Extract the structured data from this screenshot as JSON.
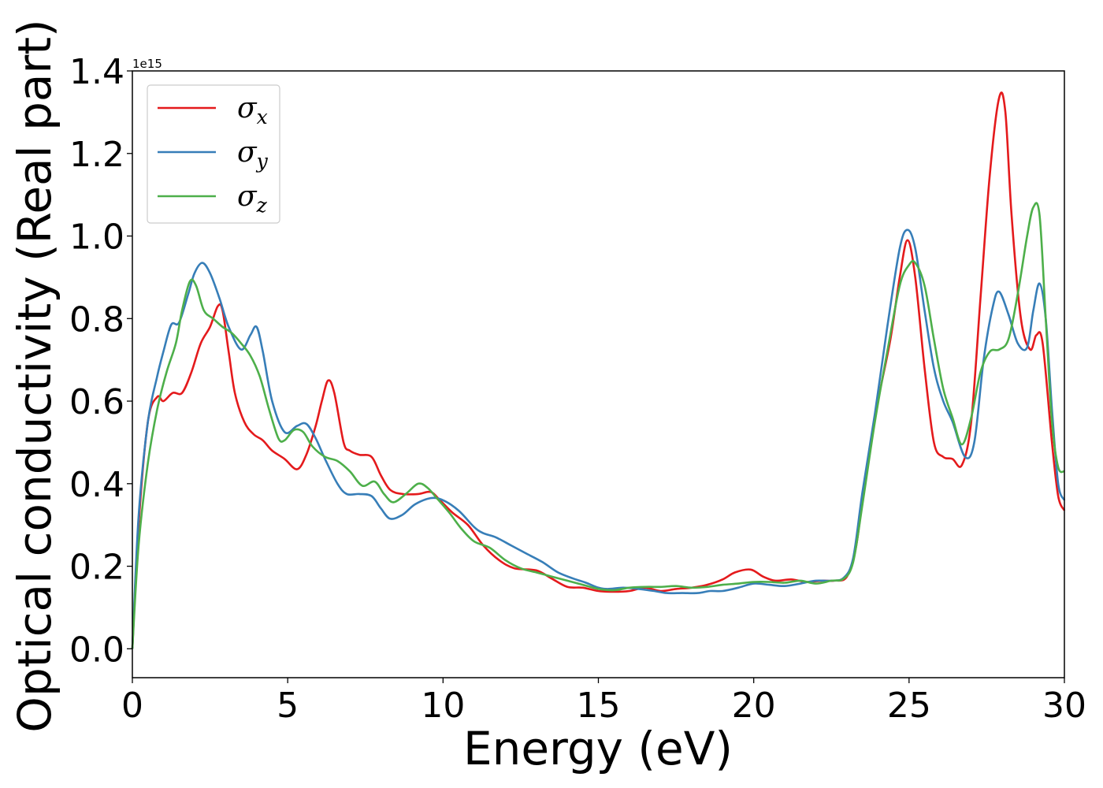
{
  "chart_data": {
    "type": "line",
    "title": "",
    "xlabel": "Energy (eV)",
    "ylabel": "Optical conductivity (Real part)",
    "y_offset_text": "1e15",
    "xlim": [
      0,
      30
    ],
    "ylim": [
      -0.07,
      1.4
    ],
    "x_ticks": [
      0,
      5,
      10,
      15,
      20,
      25,
      30
    ],
    "x_tick_labels": [
      "0",
      "5",
      "10",
      "15",
      "20",
      "25",
      "30"
    ],
    "y_ticks": [
      0.0,
      0.2,
      0.4,
      0.6,
      0.8,
      1.0,
      1.2,
      1.4
    ],
    "y_tick_labels": [
      "0.0",
      "0.2",
      "0.4",
      "0.6",
      "0.8",
      "1.0",
      "1.2",
      "1.4"
    ],
    "grid": false,
    "legend_position": "upper-left",
    "series": [
      {
        "legend_base": "σ",
        "legend_sub": "x",
        "color": "#e41a1c",
        "points": [
          [
            0,
            0
          ],
          [
            0.2,
            0.3
          ],
          [
            0.5,
            0.55
          ],
          [
            0.8,
            0.61
          ],
          [
            1.0,
            0.6
          ],
          [
            1.3,
            0.62
          ],
          [
            1.6,
            0.62
          ],
          [
            1.9,
            0.67
          ],
          [
            2.2,
            0.74
          ],
          [
            2.5,
            0.78
          ],
          [
            2.75,
            0.83
          ],
          [
            2.9,
            0.82
          ],
          [
            3.1,
            0.72
          ],
          [
            3.3,
            0.62
          ],
          [
            3.6,
            0.55
          ],
          [
            3.9,
            0.52
          ],
          [
            4.2,
            0.505
          ],
          [
            4.5,
            0.48
          ],
          [
            4.9,
            0.46
          ],
          [
            5.3,
            0.435
          ],
          [
            5.6,
            0.47
          ],
          [
            5.9,
            0.54
          ],
          [
            6.1,
            0.6
          ],
          [
            6.3,
            0.65
          ],
          [
            6.5,
            0.62
          ],
          [
            6.8,
            0.5
          ],
          [
            7.0,
            0.48
          ],
          [
            7.3,
            0.47
          ],
          [
            7.7,
            0.465
          ],
          [
            8.0,
            0.42
          ],
          [
            8.3,
            0.385
          ],
          [
            8.7,
            0.375
          ],
          [
            9.2,
            0.375
          ],
          [
            9.6,
            0.38
          ],
          [
            9.9,
            0.36
          ],
          [
            10.3,
            0.33
          ],
          [
            10.8,
            0.3
          ],
          [
            11.3,
            0.25
          ],
          [
            11.8,
            0.215
          ],
          [
            12.3,
            0.195
          ],
          [
            13.0,
            0.19
          ],
          [
            13.5,
            0.17
          ],
          [
            14.0,
            0.15
          ],
          [
            14.5,
            0.148
          ],
          [
            15.0,
            0.14
          ],
          [
            15.5,
            0.138
          ],
          [
            16.0,
            0.14
          ],
          [
            16.5,
            0.148
          ],
          [
            17.0,
            0.14
          ],
          [
            17.5,
            0.145
          ],
          [
            18.0,
            0.148
          ],
          [
            18.5,
            0.155
          ],
          [
            19.0,
            0.168
          ],
          [
            19.4,
            0.185
          ],
          [
            19.9,
            0.192
          ],
          [
            20.3,
            0.175
          ],
          [
            20.7,
            0.165
          ],
          [
            21.2,
            0.168
          ],
          [
            21.7,
            0.162
          ],
          [
            22.2,
            0.165
          ],
          [
            22.6,
            0.165
          ],
          [
            23.0,
            0.175
          ],
          [
            23.3,
            0.25
          ],
          [
            23.6,
            0.42
          ],
          [
            24.0,
            0.6
          ],
          [
            24.4,
            0.75
          ],
          [
            24.7,
            0.9
          ],
          [
            24.95,
            0.99
          ],
          [
            25.2,
            0.9
          ],
          [
            25.5,
            0.68
          ],
          [
            25.8,
            0.5
          ],
          [
            26.1,
            0.465
          ],
          [
            26.4,
            0.46
          ],
          [
            26.7,
            0.445
          ],
          [
            27.0,
            0.55
          ],
          [
            27.3,
            0.85
          ],
          [
            27.6,
            1.15
          ],
          [
            27.9,
            1.335
          ],
          [
            28.1,
            1.3
          ],
          [
            28.3,
            1.05
          ],
          [
            28.6,
            0.8
          ],
          [
            28.9,
            0.725
          ],
          [
            29.1,
            0.76
          ],
          [
            29.3,
            0.74
          ],
          [
            29.6,
            0.5
          ],
          [
            29.8,
            0.37
          ],
          [
            30.0,
            0.335
          ]
        ]
      },
      {
        "legend_base": "σ",
        "legend_sub": "y",
        "color": "#377eb8",
        "points": [
          [
            0,
            0
          ],
          [
            0.2,
            0.32
          ],
          [
            0.5,
            0.55
          ],
          [
            0.8,
            0.66
          ],
          [
            1.0,
            0.72
          ],
          [
            1.25,
            0.785
          ],
          [
            1.5,
            0.79
          ],
          [
            1.8,
            0.86
          ],
          [
            2.0,
            0.91
          ],
          [
            2.25,
            0.935
          ],
          [
            2.5,
            0.91
          ],
          [
            2.8,
            0.85
          ],
          [
            3.1,
            0.78
          ],
          [
            3.5,
            0.725
          ],
          [
            3.8,
            0.76
          ],
          [
            4.0,
            0.78
          ],
          [
            4.2,
            0.72
          ],
          [
            4.5,
            0.6
          ],
          [
            4.9,
            0.525
          ],
          [
            5.3,
            0.54
          ],
          [
            5.6,
            0.545
          ],
          [
            5.9,
            0.51
          ],
          [
            6.2,
            0.46
          ],
          [
            6.6,
            0.4
          ],
          [
            6.9,
            0.375
          ],
          [
            7.3,
            0.375
          ],
          [
            7.7,
            0.37
          ],
          [
            8.0,
            0.34
          ],
          [
            8.3,
            0.315
          ],
          [
            8.7,
            0.325
          ],
          [
            9.1,
            0.35
          ],
          [
            9.6,
            0.365
          ],
          [
            10.0,
            0.36
          ],
          [
            10.5,
            0.335
          ],
          [
            11.0,
            0.295
          ],
          [
            11.3,
            0.28
          ],
          [
            11.7,
            0.27
          ],
          [
            12.2,
            0.25
          ],
          [
            12.7,
            0.23
          ],
          [
            13.2,
            0.21
          ],
          [
            13.7,
            0.185
          ],
          [
            14.2,
            0.17
          ],
          [
            14.6,
            0.16
          ],
          [
            15.0,
            0.148
          ],
          [
            15.3,
            0.145
          ],
          [
            15.8,
            0.148
          ],
          [
            16.3,
            0.145
          ],
          [
            16.8,
            0.14
          ],
          [
            17.2,
            0.135
          ],
          [
            17.7,
            0.135
          ],
          [
            18.2,
            0.135
          ],
          [
            18.6,
            0.14
          ],
          [
            19.0,
            0.14
          ],
          [
            19.5,
            0.148
          ],
          [
            20.0,
            0.158
          ],
          [
            20.5,
            0.155
          ],
          [
            21.0,
            0.152
          ],
          [
            21.5,
            0.158
          ],
          [
            22.0,
            0.165
          ],
          [
            22.5,
            0.165
          ],
          [
            22.9,
            0.172
          ],
          [
            23.2,
            0.22
          ],
          [
            23.5,
            0.38
          ],
          [
            23.9,
            0.57
          ],
          [
            24.3,
            0.78
          ],
          [
            24.7,
            0.97
          ],
          [
            24.95,
            1.015
          ],
          [
            25.2,
            0.97
          ],
          [
            25.5,
            0.82
          ],
          [
            25.8,
            0.68
          ],
          [
            26.1,
            0.6
          ],
          [
            26.4,
            0.55
          ],
          [
            26.8,
            0.465
          ],
          [
            27.1,
            0.5
          ],
          [
            27.4,
            0.7
          ],
          [
            27.7,
            0.83
          ],
          [
            27.9,
            0.865
          ],
          [
            28.2,
            0.81
          ],
          [
            28.5,
            0.74
          ],
          [
            28.8,
            0.73
          ],
          [
            29.0,
            0.82
          ],
          [
            29.2,
            0.885
          ],
          [
            29.4,
            0.8
          ],
          [
            29.6,
            0.58
          ],
          [
            29.8,
            0.4
          ],
          [
            30.0,
            0.36
          ]
        ]
      },
      {
        "legend_base": "σ",
        "legend_sub": "z",
        "color": "#4daf4a",
        "points": [
          [
            0,
            0
          ],
          [
            0.2,
            0.25
          ],
          [
            0.5,
            0.45
          ],
          [
            0.8,
            0.58
          ],
          [
            1.1,
            0.67
          ],
          [
            1.4,
            0.74
          ],
          [
            1.6,
            0.82
          ],
          [
            1.85,
            0.89
          ],
          [
            2.05,
            0.88
          ],
          [
            2.3,
            0.82
          ],
          [
            2.6,
            0.8
          ],
          [
            2.9,
            0.78
          ],
          [
            3.2,
            0.765
          ],
          [
            3.5,
            0.74
          ],
          [
            3.8,
            0.71
          ],
          [
            4.1,
            0.66
          ],
          [
            4.4,
            0.58
          ],
          [
            4.7,
            0.51
          ],
          [
            4.9,
            0.505
          ],
          [
            5.2,
            0.53
          ],
          [
            5.5,
            0.525
          ],
          [
            5.8,
            0.49
          ],
          [
            6.2,
            0.465
          ],
          [
            6.6,
            0.455
          ],
          [
            7.0,
            0.43
          ],
          [
            7.4,
            0.395
          ],
          [
            7.8,
            0.405
          ],
          [
            8.1,
            0.375
          ],
          [
            8.4,
            0.355
          ],
          [
            8.8,
            0.375
          ],
          [
            9.2,
            0.4
          ],
          [
            9.5,
            0.39
          ],
          [
            9.8,
            0.365
          ],
          [
            10.2,
            0.33
          ],
          [
            10.6,
            0.29
          ],
          [
            11.0,
            0.26
          ],
          [
            11.5,
            0.245
          ],
          [
            12.0,
            0.215
          ],
          [
            12.5,
            0.195
          ],
          [
            13.0,
            0.185
          ],
          [
            13.5,
            0.175
          ],
          [
            14.0,
            0.165
          ],
          [
            14.5,
            0.155
          ],
          [
            15.0,
            0.145
          ],
          [
            15.5,
            0.142
          ],
          [
            16.0,
            0.148
          ],
          [
            16.5,
            0.15
          ],
          [
            17.0,
            0.15
          ],
          [
            17.5,
            0.152
          ],
          [
            18.0,
            0.148
          ],
          [
            18.5,
            0.15
          ],
          [
            19.0,
            0.155
          ],
          [
            19.5,
            0.158
          ],
          [
            20.0,
            0.162
          ],
          [
            20.5,
            0.162
          ],
          [
            21.0,
            0.16
          ],
          [
            21.5,
            0.165
          ],
          [
            22.0,
            0.158
          ],
          [
            22.5,
            0.165
          ],
          [
            22.9,
            0.17
          ],
          [
            23.2,
            0.21
          ],
          [
            23.5,
            0.35
          ],
          [
            23.9,
            0.55
          ],
          [
            24.3,
            0.72
          ],
          [
            24.7,
            0.88
          ],
          [
            25.0,
            0.93
          ],
          [
            25.2,
            0.935
          ],
          [
            25.5,
            0.88
          ],
          [
            25.8,
            0.75
          ],
          [
            26.1,
            0.63
          ],
          [
            26.4,
            0.56
          ],
          [
            26.7,
            0.495
          ],
          [
            27.0,
            0.56
          ],
          [
            27.3,
            0.67
          ],
          [
            27.6,
            0.72
          ],
          [
            27.9,
            0.725
          ],
          [
            28.2,
            0.75
          ],
          [
            28.5,
            0.86
          ],
          [
            28.8,
            1.0
          ],
          [
            29.0,
            1.07
          ],
          [
            29.2,
            1.05
          ],
          [
            29.4,
            0.8
          ],
          [
            29.6,
            0.55
          ],
          [
            29.8,
            0.44
          ],
          [
            30.0,
            0.43
          ]
        ]
      }
    ]
  }
}
